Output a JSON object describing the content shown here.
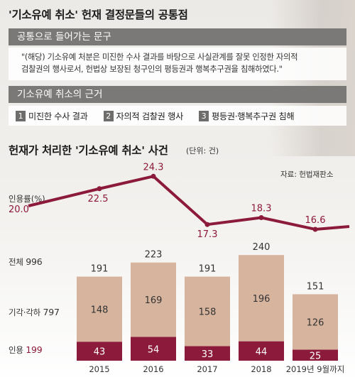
{
  "title": "'기소유예 취소' 헌재 결정문들의 공통점",
  "common_phrase": {
    "header": "공통으로 들어가는 문구",
    "quote_line1": "\"(해당) 기소유예 처분은 미진한 수사 결과를 바탕으로 사실관계를 잘못 인정한 자의적",
    "quote_line2": "검찰권의 행사로서, 헌법상 보장된 청구인의 평등권과 행복추구권을 침해하였다.\""
  },
  "grounds": {
    "header": "기소유예 취소의 근거",
    "items": [
      {
        "num": "1",
        "label": "미진한 수사 결과"
      },
      {
        "num": "2",
        "label": "자의적 검찰권 행사"
      },
      {
        "num": "3",
        "label": "평등권·행복추구권 침해"
      }
    ]
  },
  "colors": {
    "accepted": "#8c1a3a",
    "dismissed": "#d7b49e",
    "line": "#8c1a3a",
    "header_bg": "#7b7978"
  },
  "chart_data": {
    "type": "bar",
    "title": "헌재가 처리한 '기소유예 취소' 사건",
    "unit": "(단위: 건)",
    "source": "자료: 헌법재판소",
    "categories": [
      "2015",
      "2016",
      "2017",
      "2018",
      "2019년 9월까지"
    ],
    "stacked": true,
    "series": [
      {
        "name": "인용",
        "total": "199",
        "values": [
          43,
          54,
          33,
          44,
          25
        ]
      },
      {
        "name": "기각·각하",
        "total": "797",
        "values": [
          148,
          169,
          158,
          196,
          126
        ]
      }
    ],
    "totals": {
      "name": "전체",
      "total": "996",
      "values": [
        191,
        223,
        191,
        240,
        151
      ]
    },
    "rate": {
      "name": "인용률(%)",
      "type": "line",
      "values": [
        22.5,
        24.3,
        17.3,
        18.3,
        16.6
      ],
      "first_value": "20.0"
    }
  }
}
